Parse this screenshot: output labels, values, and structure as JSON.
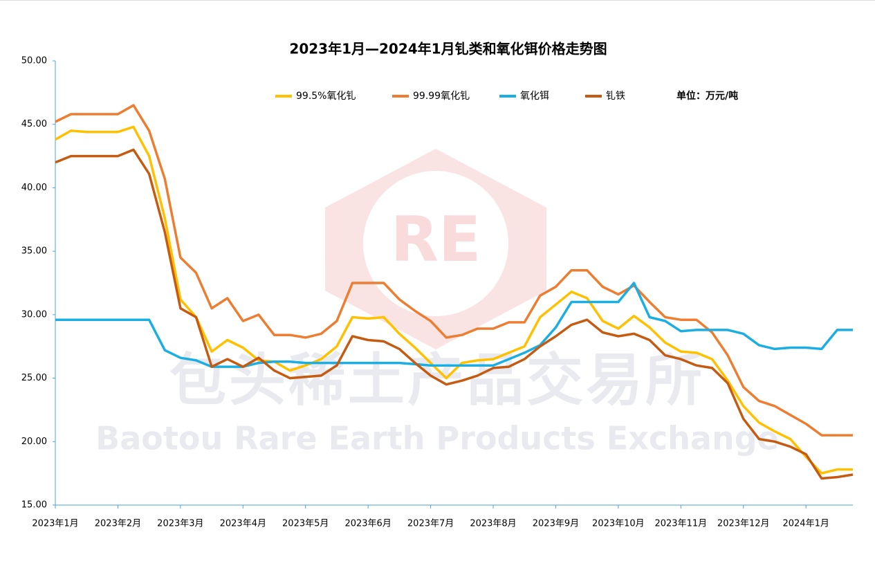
{
  "chart_data": {
    "type": "line",
    "title": "2023年1月—2024年1月钆类和氧化铒价格走势图",
    "unit_note": "单位：万元/吨",
    "watermark_logo": "RE",
    "watermark_cn": "包头稀土产品交易所",
    "watermark_en": "Baotou Rare Earth Products Exchange",
    "categories": [
      "2023年1月",
      null,
      null,
      null,
      "2023年2月",
      null,
      null,
      null,
      "2023年3月",
      null,
      null,
      null,
      "2023年4月",
      null,
      null,
      null,
      "2023年5月",
      null,
      null,
      null,
      "2023年6月",
      null,
      null,
      null,
      "2023年7月",
      null,
      null,
      null,
      "2023年8月",
      null,
      null,
      null,
      "2023年9月",
      null,
      null,
      null,
      "2023年10月",
      null,
      null,
      null,
      "2023年11月",
      null,
      null,
      null,
      "2023年12月",
      null,
      null,
      null,
      "2024年1月",
      null,
      null,
      null
    ],
    "ylim": [
      15,
      50
    ],
    "yticks": [
      {
        "value": 15,
        "label": "15.00"
      },
      {
        "value": 20,
        "label": "20.00"
      },
      {
        "value": 25,
        "label": "25.00"
      },
      {
        "value": 30,
        "label": "30.00"
      },
      {
        "value": 35,
        "label": "35.00"
      },
      {
        "value": 40,
        "label": "40.00"
      },
      {
        "value": 45,
        "label": "45.00"
      },
      {
        "value": 50,
        "label": "50.00"
      }
    ],
    "grid": false,
    "series": [
      {
        "name": "99.5%氧化钆",
        "color": "#FFC000",
        "values": [
          43.8,
          44.5,
          44.4,
          44.4,
          44.4,
          44.8,
          42.5,
          37.6,
          31.2,
          29.8,
          27.1,
          28.0,
          27.4,
          26.4,
          26.3,
          25.6,
          26.0,
          26.5,
          27.5,
          29.8,
          29.7,
          29.8,
          28.5,
          27.4,
          26.2,
          25.0,
          26.2,
          26.4,
          26.5,
          27.0,
          27.5,
          29.8,
          30.8,
          31.8,
          31.3,
          29.5,
          28.9,
          29.9,
          29.0,
          27.8,
          27.1,
          27.0,
          26.5,
          24.8,
          22.8,
          21.5,
          20.8,
          20.2,
          18.8,
          17.5,
          17.8,
          17.8
        ]
      },
      {
        "name": "99.99氧化钆",
        "color": "#ED7D31",
        "values": [
          45.2,
          45.8,
          45.8,
          45.8,
          45.8,
          46.5,
          44.5,
          40.7,
          34.5,
          33.3,
          30.5,
          31.3,
          29.5,
          30.0,
          28.4,
          28.4,
          28.2,
          28.5,
          29.5,
          32.5,
          32.5,
          32.5,
          31.2,
          30.3,
          29.5,
          28.2,
          28.4,
          28.9,
          28.9,
          29.4,
          29.4,
          31.5,
          32.2,
          33.5,
          33.5,
          32.2,
          31.6,
          32.3,
          31.0,
          29.8,
          29.6,
          29.6,
          28.6,
          26.8,
          24.3,
          23.2,
          22.8,
          22.1,
          21.4,
          20.5,
          20.5,
          20.5
        ]
      },
      {
        "name": "氧化铒",
        "color": "#1BAEE3",
        "values": [
          29.6,
          29.6,
          29.6,
          29.6,
          29.6,
          29.6,
          29.6,
          27.2,
          26.6,
          26.4,
          25.9,
          25.9,
          25.9,
          26.2,
          26.3,
          26.3,
          26.2,
          26.2,
          26.2,
          26.2,
          26.2,
          26.2,
          26.2,
          26.1,
          26.0,
          26.0,
          26.0,
          26.0,
          26.0,
          26.5,
          27.0,
          27.6,
          29.0,
          31.0,
          31.0,
          31.0,
          31.0,
          32.5,
          29.8,
          29.5,
          28.7,
          28.8,
          28.8,
          28.8,
          28.5,
          27.6,
          27.3,
          27.4,
          27.4,
          27.3,
          28.8,
          28.8
        ]
      },
      {
        "name": "钆铁",
        "color": "#C55A11",
        "values": [
          42.0,
          42.5,
          42.5,
          42.5,
          42.5,
          43.0,
          41.1,
          36.5,
          30.5,
          29.8,
          25.9,
          26.5,
          25.9,
          26.6,
          25.6,
          25.0,
          25.1,
          25.2,
          26.0,
          28.3,
          28.0,
          27.9,
          27.3,
          26.2,
          25.2,
          24.5,
          24.8,
          25.2,
          25.8,
          25.9,
          26.5,
          27.5,
          28.3,
          29.2,
          29.6,
          28.6,
          28.3,
          28.5,
          28.0,
          26.8,
          26.5,
          26.0,
          25.8,
          24.6,
          21.8,
          20.2,
          20.0,
          19.6,
          19.0,
          17.1,
          17.2,
          17.4
        ]
      }
    ]
  }
}
